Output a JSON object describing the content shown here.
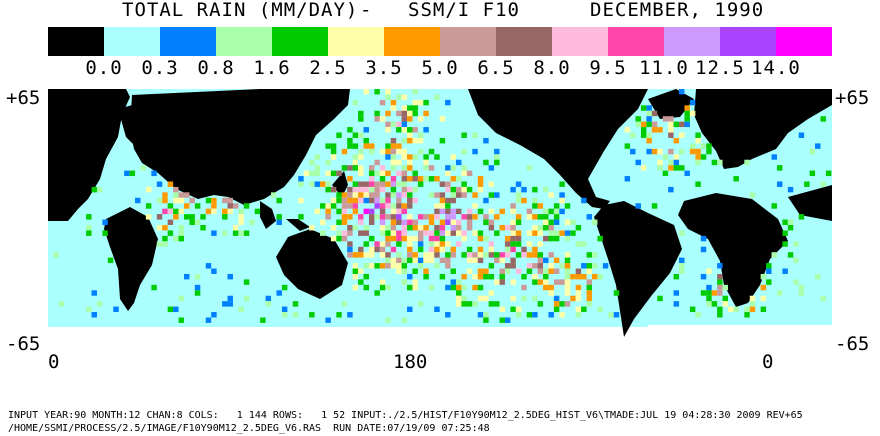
{
  "title": {
    "product": "TOTAL RAIN (MM/DAY)",
    "separator": "-",
    "instrument": "SSM/I F10",
    "period": "DECEMBER, 1990"
  },
  "legend": {
    "colors": [
      "#000000",
      "#aaffff",
      "#0080ff",
      "#aaffaa",
      "#00cc00",
      "#ffffaa",
      "#ff9900",
      "#cc9999",
      "#996666",
      "#ffbbdd",
      "#ff44aa",
      "#cc99ff",
      "#aa44ff",
      "#ff00ff"
    ],
    "labels": [
      "0.0",
      "0.3",
      "0.8",
      "1.6",
      "2.5",
      "3.5",
      "5.0",
      "6.5",
      "8.0",
      "9.5",
      "11.0",
      "12.5",
      "14.0"
    ]
  },
  "axes": {
    "lat_top_left": "+65",
    "lat_top_right": "+65",
    "lat_bottom_left": "-65",
    "lat_bottom_right": "-65",
    "lon_labels": [
      "0",
      "180",
      "0"
    ]
  },
  "footer": {
    "line1": "INPUT YEAR:90 MONTH:12 CHAN:8 COLS:   1 144 ROWS:   1 52 INPUT:./2.5/HIST/F10Y90M12_2.5DEG_HIST_V6\\TMADE:JUL 19 04:28:30 2009 REV+65",
    "line2": "/HOME/SSMI/PROCESS/2.5/IMAGE/F10Y90M12_2.5DEG_V6.RAS  RUN DATE:07/19/09 07:25:48"
  },
  "map": {
    "ocean_color": "#aaffff",
    "land_color": "#000000",
    "ice_color": "#ffffff"
  }
}
